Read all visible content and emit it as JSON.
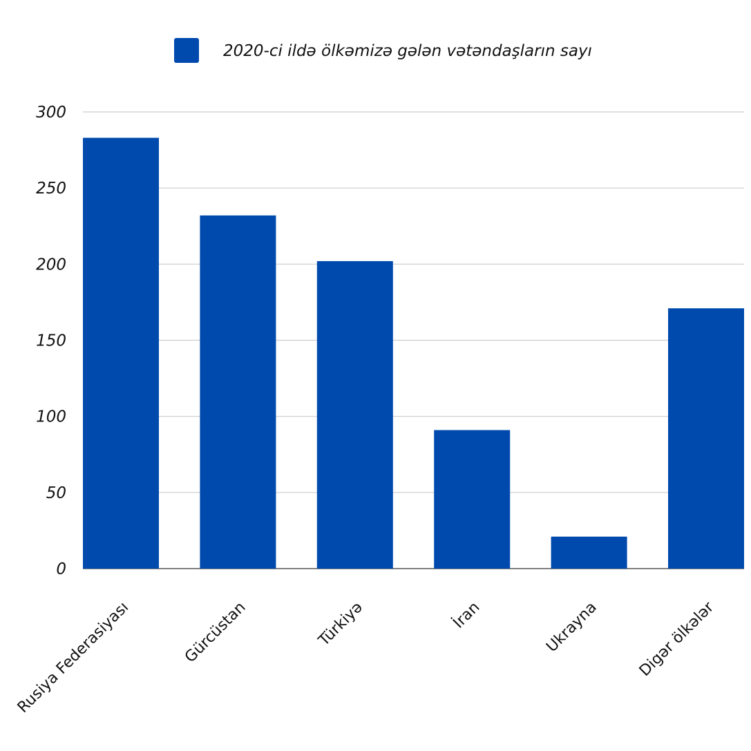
{
  "chart_data": {
    "type": "bar",
    "categories": [
      "Rusiya Federasiyası",
      "Gürcüstan",
      "Türkiyə",
      "İran",
      "Ukrayna",
      "Digər ölkələr"
    ],
    "series": [
      {
        "name": "2020-ci ildə ölkəmizə gələn vətəndaşların sayı",
        "values": [
          283,
          232,
          202,
          91,
          21,
          171
        ]
      }
    ],
    "yticks": [
      "0",
      "50",
      "100",
      "150",
      "200",
      "250",
      "300"
    ],
    "ylim": [
      0,
      300
    ],
    "grid": true,
    "legend_position": "top",
    "colors": {
      "bar": "#004AAD",
      "grid": "#cccccc",
      "axis": "#555555"
    }
  }
}
